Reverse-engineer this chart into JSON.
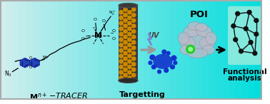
{
  "bg_gradient_left": "#d8f0f0",
  "bg_gradient_right": "#00dede",
  "bg_mid": "#88e8e8",
  "border_color": "#999999",
  "label_tracer_M": "M",
  "label_tracer_sup": "n+",
  "label_tracer_rest": "-TRACER",
  "label_targeting": "Targetting",
  "label_poi": "POI",
  "label_func1": "Functional",
  "label_func2": "analysis",
  "label_uv": "UV",
  "blue_color": "#1133bb",
  "blue_splat_color": "#2244cc",
  "green_dot_color": "#22bb22",
  "nanotube_bg": "#2a2a2a",
  "nanotube_dot": "#cc8800",
  "protein_color": "#c0c0cc",
  "protein_edge": "#888899",
  "network_bg": "#88eecc",
  "node_color": "#111111",
  "edge_color": "#111111",
  "arrow_gray": "#999999",
  "arrow_black": "#111111",
  "chem_blue": "#2244bb",
  "chem_black": "#111111"
}
